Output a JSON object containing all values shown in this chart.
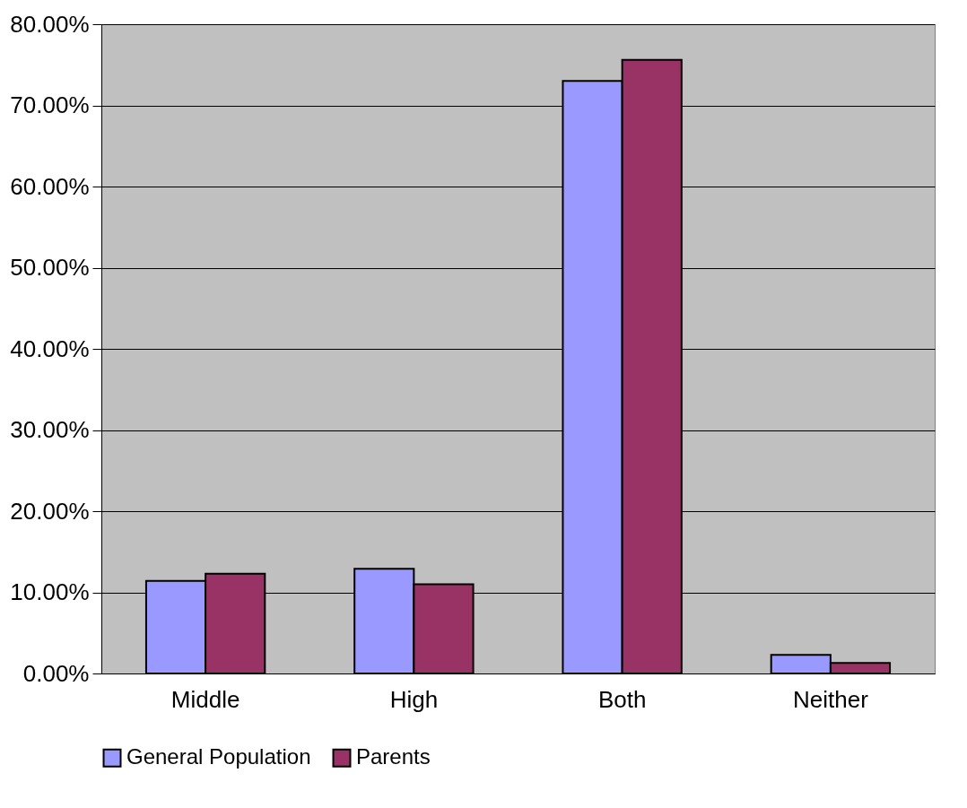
{
  "chart_data": {
    "type": "bar",
    "categories": [
      "Middle",
      "High",
      "Both",
      "Neither"
    ],
    "series": [
      {
        "name": "General Population",
        "color": "#9999ff",
        "values": [
          11.4,
          12.9,
          73.0,
          2.3
        ]
      },
      {
        "name": "Parents",
        "color": "#993366",
        "values": [
          12.3,
          11.0,
          75.6,
          1.3
        ]
      }
    ],
    "ylim": [
      0,
      80
    ],
    "yticks": [
      {
        "value": 0,
        "label": "0.00%"
      },
      {
        "value": 10,
        "label": "10.00%"
      },
      {
        "value": 20,
        "label": "20.00%"
      },
      {
        "value": 30,
        "label": "30.00%"
      },
      {
        "value": 40,
        "label": "40.00%"
      },
      {
        "value": 50,
        "label": "50.00%"
      },
      {
        "value": 60,
        "label": "60.00%"
      },
      {
        "value": 70,
        "label": "70.00%"
      },
      {
        "value": 80,
        "label": "80.00%"
      }
    ],
    "grid": "y",
    "legend": "bottom"
  }
}
